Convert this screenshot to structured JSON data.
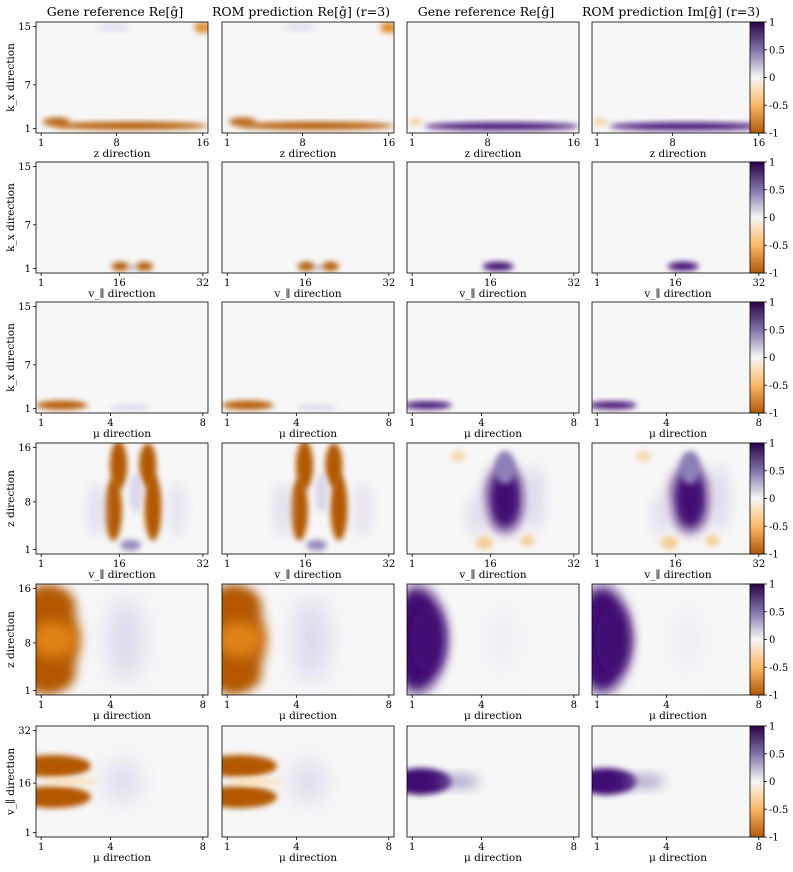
{
  "column_titles": [
    "Gene reference Re[ĝ]",
    "ROM prediction Re[ĝ] (r=3)",
    "Gene reference Re[ĝ]",
    "ROM prediction Im[ĝ] (r=3)"
  ],
  "colorbar": {
    "ticks": [
      "1",
      "0.5",
      "0",
      "-0.5",
      "-1"
    ],
    "range": [
      -1,
      1
    ],
    "colors": {
      "positive": "#3f0a73",
      "zero": "#f7f7f7",
      "negative": "#b35806"
    }
  },
  "chart_data": [
    {
      "type": "heatmap",
      "row": 1,
      "xlabel": "z direction",
      "ylabel": "k_x direction",
      "xticks": [
        "1",
        "8",
        "16"
      ],
      "yticks": [
        "1",
        "7",
        "15"
      ],
      "xrange": [
        1,
        16
      ],
      "yrange": [
        1,
        15
      ]
    },
    {
      "type": "heatmap",
      "row": 2,
      "xlabel": "v_∥ direction",
      "ylabel": "k_x direction",
      "xticks": [
        "1",
        "16",
        "32"
      ],
      "yticks": [
        "1",
        "7",
        "15"
      ],
      "xrange": [
        1,
        32
      ],
      "yrange": [
        1,
        15
      ]
    },
    {
      "type": "heatmap",
      "row": 3,
      "xlabel": "μ direction",
      "ylabel": "k_x direction",
      "xticks": [
        "1",
        "4",
        "8"
      ],
      "yticks": [
        "1",
        "7",
        "15"
      ],
      "xrange": [
        1,
        8
      ],
      "yrange": [
        1,
        15
      ]
    },
    {
      "type": "heatmap",
      "row": 4,
      "xlabel": "v_∥ direction",
      "ylabel": "z direction",
      "xticks": [
        "1",
        "16",
        "32"
      ],
      "yticks": [
        "1",
        "8",
        "16"
      ],
      "xrange": [
        1,
        32
      ],
      "yrange": [
        1,
        16
      ]
    },
    {
      "type": "heatmap",
      "row": 5,
      "xlabel": "μ direction",
      "ylabel": "z direction",
      "xticks": [
        "1",
        "4",
        "8"
      ],
      "yticks": [
        "1",
        "8",
        "16"
      ],
      "xrange": [
        1,
        8
      ],
      "yrange": [
        1,
        16
      ]
    },
    {
      "type": "heatmap",
      "row": 6,
      "xlabel": "μ direction",
      "ylabel": "v_∥ direction",
      "xticks": [
        "1",
        "4",
        "8"
      ],
      "yticks": [
        "1",
        "16",
        "32"
      ],
      "xrange": [
        1,
        8
      ],
      "yrange": [
        1,
        32
      ]
    }
  ]
}
